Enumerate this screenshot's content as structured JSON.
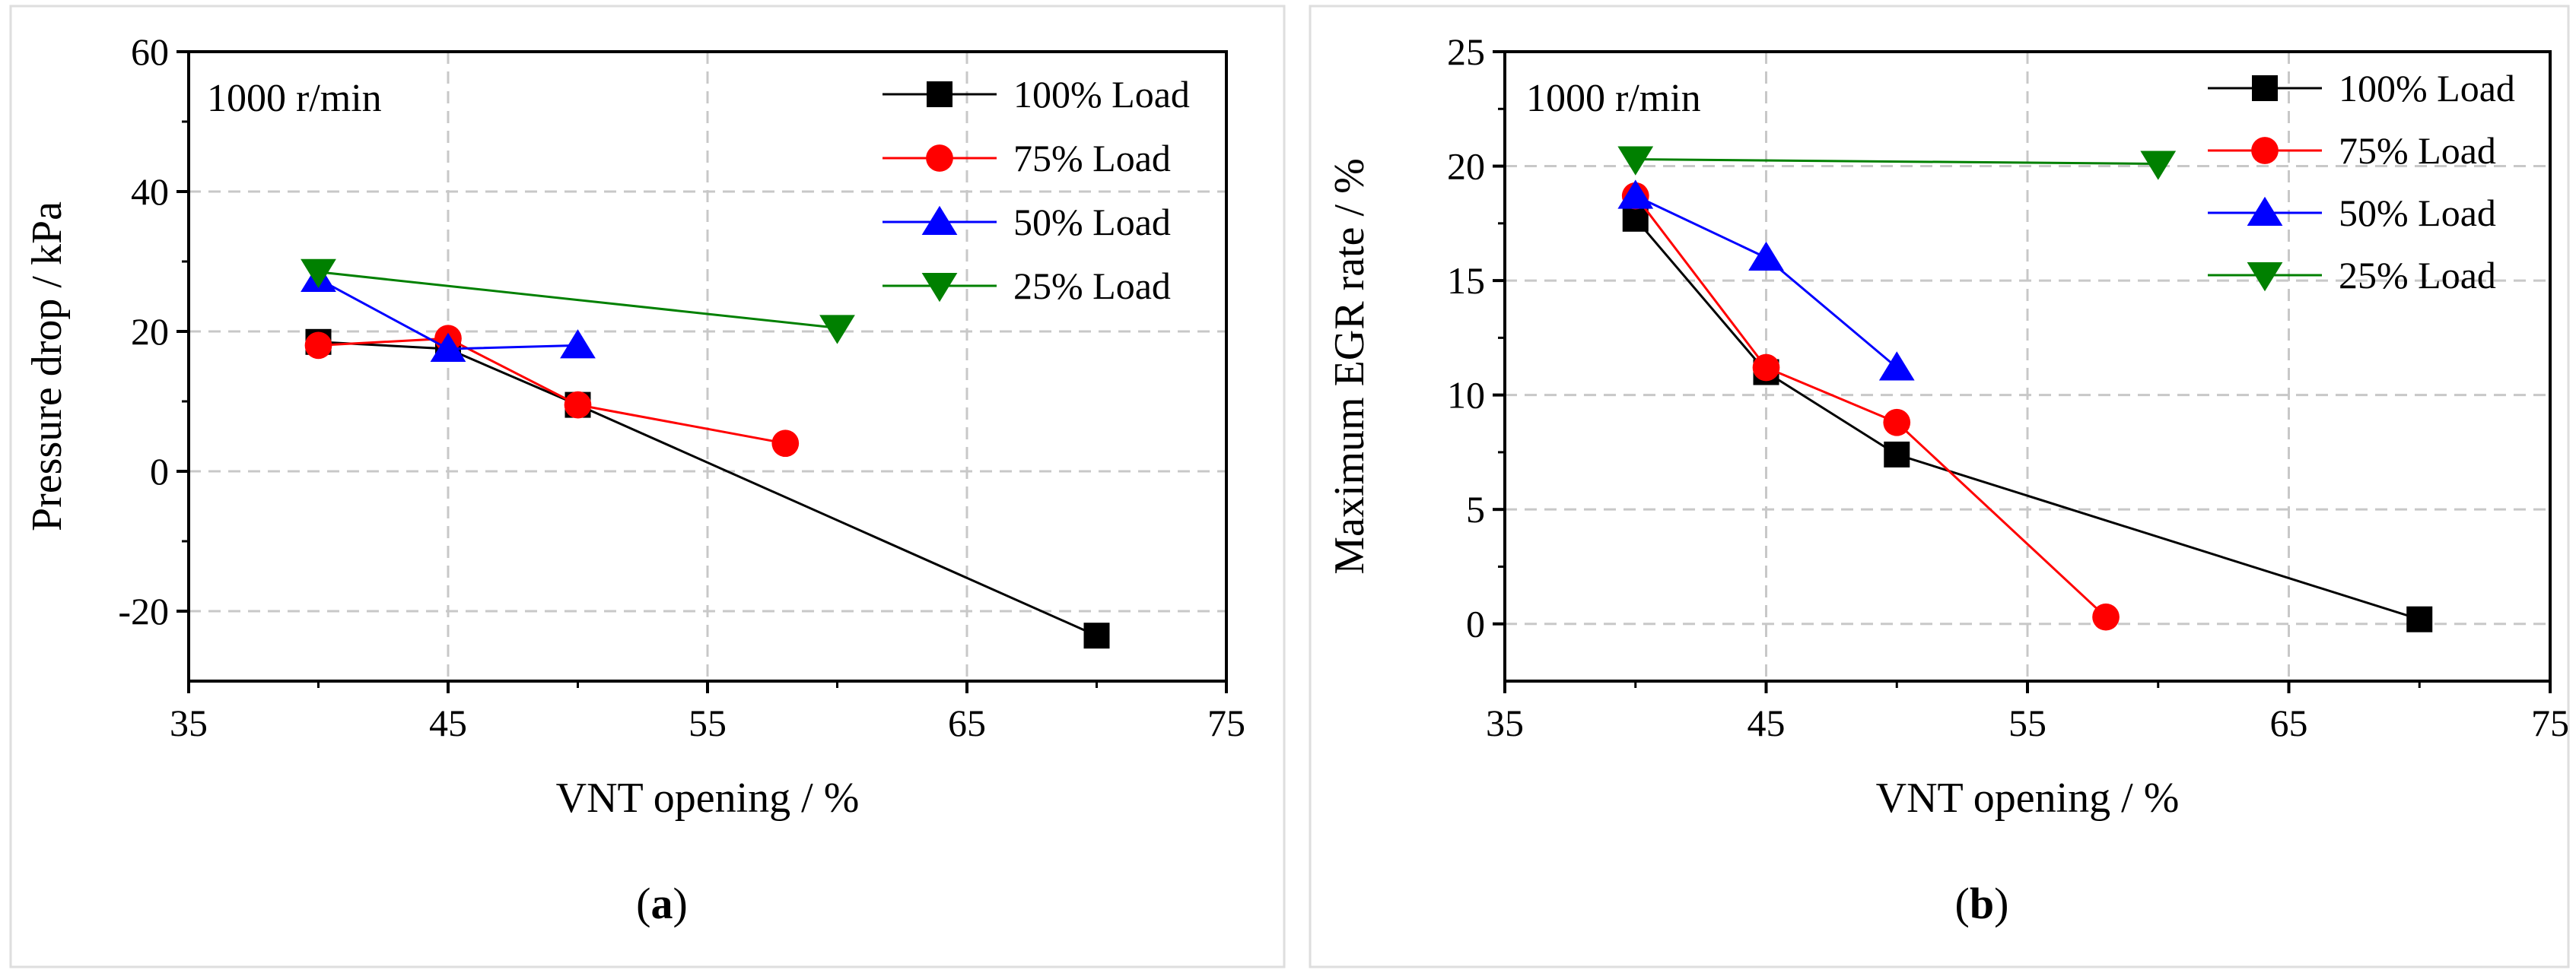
{
  "chart_data": [
    {
      "panel_label": "a",
      "type": "line",
      "annotation": "1000 r/min",
      "xlabel": "VNT opening / %",
      "ylabel": "Pressure drop / kPa",
      "xlim": [
        35,
        75
      ],
      "ylim": [
        -30,
        60
      ],
      "xticks": [
        35,
        45,
        55,
        65,
        75
      ],
      "yticks": [
        -20,
        0,
        20,
        40,
        60
      ],
      "grid": true,
      "legend_position": "top-right",
      "series": [
        {
          "name": "100% Load",
          "color": "#000000",
          "marker": "square",
          "x": [
            40,
            45,
            50,
            70
          ],
          "y": [
            18.5,
            17.5,
            9.5,
            -23.5
          ]
        },
        {
          "name": "75% Load",
          "color": "#ff0000",
          "marker": "circle",
          "x": [
            40,
            45,
            50,
            58
          ],
          "y": [
            18,
            19,
            9.5,
            4
          ]
        },
        {
          "name": "50% Load",
          "color": "#0000ff",
          "marker": "triangle-up",
          "x": [
            40,
            45,
            50
          ],
          "y": [
            27.5,
            17.5,
            18
          ]
        },
        {
          "name": "25% Load",
          "color": "#008000",
          "marker": "triangle-down",
          "x": [
            40,
            60
          ],
          "y": [
            28.5,
            20.5
          ]
        }
      ]
    },
    {
      "panel_label": "b",
      "type": "line",
      "annotation": "1000 r/min",
      "xlabel": "VNT opening / %",
      "ylabel": "Maximum EGR rate / %",
      "xlim": [
        35,
        75
      ],
      "ylim": [
        -2.5,
        25
      ],
      "xticks": [
        35,
        45,
        55,
        65,
        75
      ],
      "yticks": [
        0,
        5,
        10,
        15,
        20,
        25
      ],
      "grid": true,
      "legend_position": "top-right",
      "series": [
        {
          "name": "100% Load",
          "color": "#000000",
          "marker": "square",
          "x": [
            40,
            45,
            50,
            70
          ],
          "y": [
            17.7,
            11,
            7.4,
            0.2
          ]
        },
        {
          "name": "75% Load",
          "color": "#ff0000",
          "marker": "circle",
          "x": [
            40,
            45,
            50,
            58
          ],
          "y": [
            18.7,
            11.2,
            8.8,
            0.3
          ]
        },
        {
          "name": "50% Load",
          "color": "#0000ff",
          "marker": "triangle-up",
          "x": [
            40,
            45,
            50
          ],
          "y": [
            18.7,
            16,
            11.2
          ]
        },
        {
          "name": "25% Load",
          "color": "#008000",
          "marker": "triangle-down",
          "x": [
            40,
            60
          ],
          "y": [
            20.3,
            20.1
          ]
        }
      ]
    }
  ]
}
